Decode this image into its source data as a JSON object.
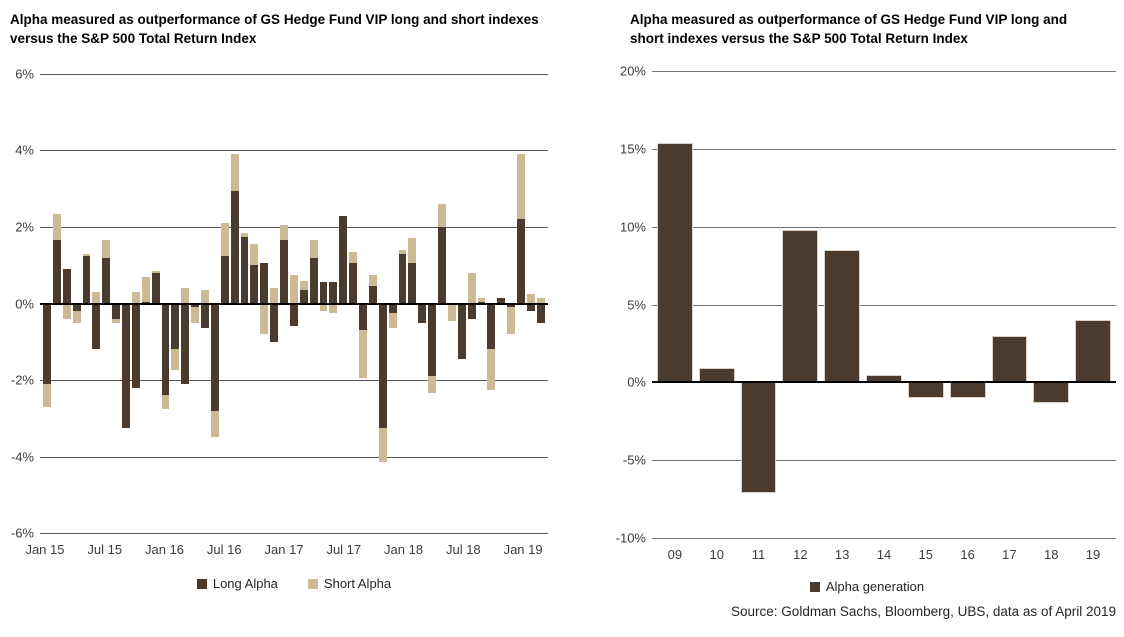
{
  "page": {
    "background": "#ffffff"
  },
  "colors": {
    "long_alpha": "#4b3a2e",
    "short_alpha": "#cdb994",
    "gridline_left": "#595959",
    "gridline_right": "#737373",
    "zero_line": "#000000",
    "axis_text": "#3d3d3d",
    "title_text": "#000000",
    "bar_outline": "#d8d1c7"
  },
  "chart_data": [
    {
      "type": "bar",
      "stacked": true,
      "title": "Alpha measured as outperformance of GS Hedge Fund VIP long and short indexes versus the S&P 500 Total Return Index",
      "categories": [
        "Jan 15",
        "Feb 15",
        "Mar 15",
        "Apr 15",
        "May 15",
        "Jun 15",
        "Jul 15",
        "Aug 15",
        "Sep 15",
        "Oct 15",
        "Nov 15",
        "Dec 15",
        "Jan 16",
        "Feb 16",
        "Mar 16",
        "Apr 16",
        "May 16",
        "Jun 16",
        "Jul 16",
        "Aug 16",
        "Sep 16",
        "Oct 16",
        "Nov 16",
        "Dec 16",
        "Jan 17",
        "Feb 17",
        "Mar 17",
        "Apr 17",
        "May 17",
        "Jun 17",
        "Jul 17",
        "Aug 17",
        "Sep 17",
        "Oct 17",
        "Nov 17",
        "Dec 17",
        "Jan 18",
        "Feb 18",
        "Mar 18",
        "Apr 18",
        "May 18",
        "Jun 18",
        "Jul 18",
        "Aug 18",
        "Sep 18",
        "Oct 18",
        "Nov 18",
        "Dec 18",
        "Jan 19",
        "Feb 19",
        "Mar 19"
      ],
      "series": [
        {
          "name": "Long Alpha",
          "color": "#4b3a2e",
          "values": [
            -2.1,
            1.65,
            0.9,
            -0.2,
            1.25,
            -1.2,
            1.2,
            -0.4,
            -3.25,
            -2.2,
            0.05,
            0.8,
            -2.4,
            -1.2,
            -2.1,
            -0.1,
            -0.65,
            -2.8,
            1.25,
            2.95,
            1.75,
            1.0,
            1.05,
            -1.0,
            1.65,
            -0.6,
            0.35,
            1.2,
            0.55,
            0.55,
            2.3,
            1.05,
            -0.7,
            0.45,
            -3.25,
            -0.25,
            1.3,
            1.05,
            -0.5,
            -1.9,
            2.0,
            -0.05,
            -1.45,
            -0.4,
            0.05,
            -1.2,
            0.15,
            -0.1,
            2.2,
            -0.2,
            -0.5
          ]
        },
        {
          "name": "Short Alpha",
          "color": "#cdb994",
          "values": [
            -0.6,
            0.7,
            -0.4,
            -0.3,
            0.05,
            0.3,
            0.45,
            -0.1,
            0.0,
            0.3,
            0.65,
            0.05,
            -0.35,
            -0.55,
            0.4,
            -0.4,
            0.35,
            -0.7,
            0.85,
            0.95,
            0.1,
            0.55,
            -0.8,
            0.4,
            0.4,
            0.75,
            0.25,
            0.45,
            -0.2,
            -0.25,
            0.0,
            0.3,
            -1.25,
            0.3,
            -0.9,
            -0.4,
            0.1,
            0.65,
            0.0,
            -0.45,
            0.6,
            -0.4,
            0.0,
            0.8,
            0.1,
            -1.05,
            0.0,
            -0.7,
            1.7,
            0.25,
            0.15
          ]
        }
      ],
      "ylim": [
        -6,
        6
      ],
      "grid": true,
      "legend_position": "bottom",
      "y_ticks": [
        {
          "value": 6,
          "label": "6%"
        },
        {
          "value": 4,
          "label": "4%"
        },
        {
          "value": 2,
          "label": "2%"
        },
        {
          "value": 0,
          "label": "0%"
        },
        {
          "value": -2,
          "label": "-2%"
        },
        {
          "value": -4,
          "label": "-4%"
        },
        {
          "value": -6,
          "label": "-6%"
        }
      ],
      "x_ticks": [
        {
          "index": 0,
          "label": "Jan 15"
        },
        {
          "index": 6,
          "label": "Jul 15"
        },
        {
          "index": 12,
          "label": "Jan 16"
        },
        {
          "index": 18,
          "label": "Jul 16"
        },
        {
          "index": 24,
          "label": "Jan 17"
        },
        {
          "index": 30,
          "label": "Jul 17"
        },
        {
          "index": 36,
          "label": "Jan 18"
        },
        {
          "index": 42,
          "label": "Jul 18"
        },
        {
          "index": 48,
          "label": "Jan 19"
        }
      ]
    },
    {
      "type": "bar",
      "stacked": false,
      "title": "Alpha measured as outperformance of GS Hedge Fund VIP long and short indexes versus the S&P 500 Total Return Index",
      "categories": [
        "09",
        "10",
        "11",
        "12",
        "13",
        "14",
        "15",
        "16",
        "17",
        "18",
        "19"
      ],
      "series": [
        {
          "name": "Alpha generation",
          "color": "#4b3a2e",
          "values": [
            15.4,
            0.9,
            -7.1,
            9.8,
            8.5,
            0.5,
            -1.0,
            -1.0,
            3.0,
            -1.3,
            4.0
          ]
        }
      ],
      "ylim": [
        -10,
        20
      ],
      "grid": true,
      "legend_position": "bottom",
      "y_ticks": [
        {
          "value": 20,
          "label": "20%"
        },
        {
          "value": 15,
          "label": "15%"
        },
        {
          "value": 10,
          "label": "10%"
        },
        {
          "value": 5,
          "label": "5%"
        },
        {
          "value": 0,
          "label": "0%"
        },
        {
          "value": -5,
          "label": "-5%"
        },
        {
          "value": -10,
          "label": "-10%"
        }
      ],
      "source": "Source: Goldman Sachs, Bloomberg, UBS, data as of April 2019"
    }
  ]
}
